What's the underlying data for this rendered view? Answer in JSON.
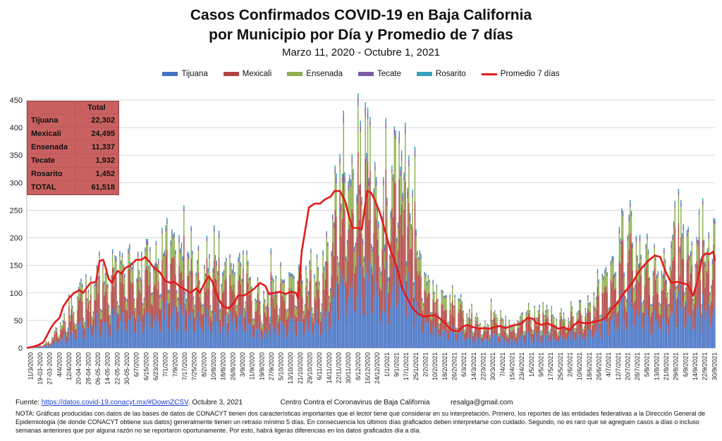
{
  "header": {
    "title_line1": "Casos Confirmados COVID-19 en Baja California",
    "title_line2": "por Municipio por Día y Promedio de 7 días",
    "subtitle": "Marzo 11, 2020  - Octubre 1, 2021"
  },
  "legend": [
    {
      "label": "Tijuana",
      "color": "#4472c4"
    },
    {
      "label": "Mexicali",
      "color": "#b0453f"
    },
    {
      "label": "Ensenada",
      "color": "#8fb050"
    },
    {
      "label": "Tecate",
      "color": "#7a5ca6"
    },
    {
      "label": "Rosarito",
      "color": "#35a0bb"
    },
    {
      "label": "Promedio 7 días",
      "color": "#e21b1b"
    }
  ],
  "totals_table": {
    "header": "Total",
    "rows": [
      {
        "name": "Tijuana",
        "value": "22,302"
      },
      {
        "name": "Mexicali",
        "value": "24,495"
      },
      {
        "name": "Ensenada",
        "value": "11,337"
      },
      {
        "name": "Tecate",
        "value": "1,932"
      },
      {
        "name": "Rosarito",
        "value": "1,452"
      },
      {
        "name": "TOTAL",
        "value": "61,518"
      }
    ]
  },
  "footer": {
    "fuente_label": "Fuente:",
    "fuente_link": "https://datos.covid-19.conacyt.mx/#DownZCSV",
    "fuente_date": ".  Octubre 3, 2021",
    "center": "Centro Contra el Coronavirus de Baja California",
    "email": "resalga@gmail.com",
    "nota": "NOTA: Gráficas producidas con datos de las bases de datos de CONACYT tienen dos características importantes que el lector tiene que considerar en su interpretación.  Primero, los reportes de las entidades federativas a la Dirección General de Epidemiologia (de donde CONACYT obtiene sus datos) generalmente tienen un retraso mínimo 5 días. En consecuencia los últimos días graficados deben interpretarse  con cuidado. Segundo, no es raro que se agreguen casos a días o incluso semanas anteriores  que por alguna razón no se reportaron oportunamente.  Por esto, habrá ligeras diferencias en los datos  graficados día a día."
  },
  "chart_data": {
    "type": "bar",
    "stacked": true,
    "x_range": [
      "2020-03-11",
      "2021-10-01"
    ],
    "ylim": [
      0,
      450
    ],
    "yticks": [
      0,
      50,
      100,
      150,
      200,
      250,
      300,
      350,
      400,
      450
    ],
    "xtick_labels": [
      "11/3/2020",
      "19-03-2020",
      "27-03-2020",
      "4/4/2020",
      "12/4/2020",
      "20-04-2020",
      "28-04-2020",
      "06-05-2020",
      "14-05-2020",
      "22-05-2020",
      "30-05-2020",
      "6/7/2020",
      "6/15/2020",
      "6/23/2020",
      "7/1/2020",
      "7/9/2020",
      "7/17/2020",
      "7/25/2020",
      "8/2/2020",
      "10/8/2020",
      "18/8/2020",
      "26/8/2020",
      "3/9/2020",
      "11/9/2020",
      "19/9/2020",
      "27/9/2020",
      "5/10/2020",
      "13/10/2020",
      "21/10/2020",
      "29/10/2020",
      "6/11/2020",
      "14/11/2020",
      "22/11/2020",
      "30/11/2020",
      "8/12/2020",
      "16/12/2020",
      "24/12/2020",
      "1/1/2021",
      "9/1/2021",
      "17/1/2021",
      "25/1/2021",
      "2/2/2021",
      "10/2/2021",
      "18/2/2021",
      "26/2/2021",
      "6/3/2021",
      "14/3/2021",
      "22/3/2021",
      "30/3/2021",
      "7/4/2021",
      "15/4/2021",
      "23/4/2021",
      "1/5/2021",
      "9/5/2021",
      "17/5/2021",
      "25/5/2021",
      "2/6/2021",
      "10/6/2021",
      "18/6/2021",
      "26/6/2021",
      "4/7/2021",
      "12/7/2021",
      "20/7/2021",
      "28/7/2021",
      "5/8/2021",
      "13/8/2021",
      "21/8/2021",
      "29/8/2021",
      "6/9/2021",
      "14/9/2021",
      "22/9/2021",
      "30/9/2021"
    ],
    "series_names": [
      "Tijuana",
      "Mexicali",
      "Ensenada",
      "Tecate",
      "Rosarito"
    ],
    "daily_total_envelope": [
      [
        0,
        0
      ],
      [
        4,
        1
      ],
      [
        8,
        4
      ],
      [
        12,
        8
      ],
      [
        16,
        12
      ],
      [
        20,
        25
      ],
      [
        24,
        40
      ],
      [
        28,
        55
      ],
      [
        32,
        70
      ],
      [
        36,
        85
      ],
      [
        40,
        100
      ],
      [
        44,
        105
      ],
      [
        48,
        110
      ],
      [
        52,
        120
      ],
      [
        56,
        130
      ],
      [
        60,
        128
      ],
      [
        64,
        140
      ],
      [
        68,
        150
      ],
      [
        72,
        175
      ],
      [
        76,
        160
      ],
      [
        80,
        140
      ],
      [
        84,
        150
      ],
      [
        88,
        160
      ],
      [
        92,
        170
      ],
      [
        96,
        175
      ],
      [
        100,
        180
      ],
      [
        104,
        190
      ],
      [
        108,
        195
      ],
      [
        112,
        190
      ],
      [
        116,
        185
      ],
      [
        120,
        175
      ],
      [
        124,
        160
      ],
      [
        128,
        150
      ],
      [
        132,
        145
      ],
      [
        136,
        140
      ],
      [
        140,
        135
      ],
      [
        144,
        130
      ],
      [
        148,
        125
      ],
      [
        152,
        135
      ],
      [
        156,
        150
      ],
      [
        160,
        140
      ],
      [
        164,
        120
      ],
      [
        168,
        100
      ],
      [
        172,
        95
      ],
      [
        176,
        90
      ],
      [
        180,
        100
      ],
      [
        184,
        110
      ],
      [
        188,
        115
      ],
      [
        192,
        120
      ],
      [
        196,
        125
      ],
      [
        200,
        130
      ],
      [
        204,
        125
      ],
      [
        208,
        130
      ],
      [
        212,
        135
      ],
      [
        216,
        140
      ],
      [
        220,
        145
      ],
      [
        224,
        200
      ],
      [
        228,
        260
      ],
      [
        232,
        310
      ],
      [
        236,
        330
      ],
      [
        240,
        340
      ],
      [
        244,
        345
      ],
      [
        248,
        340
      ],
      [
        252,
        330
      ],
      [
        256,
        325
      ],
      [
        260,
        270
      ],
      [
        264,
        260
      ],
      [
        268,
        270
      ],
      [
        272,
        360
      ],
      [
        276,
        340
      ],
      [
        280,
        300
      ],
      [
        284,
        250
      ],
      [
        288,
        200
      ],
      [
        292,
        160
      ],
      [
        296,
        120
      ],
      [
        300,
        100
      ],
      [
        304,
        90
      ],
      [
        308,
        85
      ],
      [
        312,
        80
      ],
      [
        316,
        75
      ],
      [
        320,
        70
      ],
      [
        324,
        65
      ],
      [
        328,
        60
      ],
      [
        332,
        55
      ],
      [
        336,
        45
      ],
      [
        340,
        45
      ],
      [
        344,
        50
      ],
      [
        348,
        48
      ],
      [
        352,
        50
      ],
      [
        356,
        48
      ],
      [
        360,
        50
      ],
      [
        364,
        52
      ],
      [
        368,
        55
      ],
      [
        372,
        58
      ],
      [
        376,
        60
      ],
      [
        380,
        65
      ],
      [
        384,
        62
      ],
      [
        388,
        58
      ],
      [
        392,
        55
      ],
      [
        396,
        58
      ],
      [
        400,
        60
      ],
      [
        404,
        62
      ],
      [
        408,
        65
      ],
      [
        412,
        68
      ],
      [
        416,
        75
      ],
      [
        420,
        90
      ],
      [
        424,
        110
      ],
      [
        428,
        130
      ],
      [
        432,
        150
      ],
      [
        436,
        160
      ],
      [
        440,
        175
      ],
      [
        444,
        190
      ],
      [
        448,
        200
      ],
      [
        452,
        180
      ],
      [
        456,
        160
      ],
      [
        460,
        150
      ],
      [
        464,
        140
      ],
      [
        468,
        150
      ],
      [
        472,
        160
      ],
      [
        476,
        175
      ],
      [
        480,
        200
      ],
      [
        484,
        210
      ],
      [
        488,
        200
      ],
      [
        492,
        180
      ],
      [
        496,
        175
      ],
      [
        500,
        170
      ],
      [
        504,
        190
      ],
      [
        508,
        200
      ]
    ],
    "spikes": [
      [
        138,
        237
      ],
      [
        142,
        220
      ],
      [
        180,
        210
      ],
      [
        252,
        395
      ],
      [
        258,
        370
      ],
      [
        265,
        360
      ],
      [
        276,
        405
      ],
      [
        279,
        390
      ],
      [
        287,
        380
      ],
      [
        343,
        110
      ],
      [
        440,
        255
      ],
      [
        445,
        250
      ],
      [
        496,
        260
      ],
      [
        499,
        275
      ],
      [
        503,
        200
      ]
    ],
    "share_tijuana": 0.36,
    "share_mexicali": 0.4,
    "share_ensenada": 0.19,
    "share_tecate": 0.03,
    "share_rosarito": 0.02,
    "moving_avg_7d": [
      [
        0,
        0
      ],
      [
        6,
        2
      ],
      [
        12,
        5
      ],
      [
        18,
        10
      ],
      [
        22,
        22
      ],
      [
        26,
        35
      ],
      [
        30,
        45
      ],
      [
        36,
        55
      ],
      [
        40,
        75
      ],
      [
        46,
        90
      ],
      [
        52,
        100
      ],
      [
        58,
        105
      ],
      [
        62,
        100
      ],
      [
        66,
        110
      ],
      [
        70,
        118
      ],
      [
        76,
        120
      ],
      [
        78,
        140
      ],
      [
        80,
        158
      ],
      [
        84,
        160
      ],
      [
        86,
        150
      ],
      [
        90,
        125
      ],
      [
        94,
        118
      ],
      [
        96,
        130
      ],
      [
        100,
        140
      ],
      [
        104,
        135
      ],
      [
        108,
        145
      ],
      [
        114,
        150
      ],
      [
        120,
        160
      ],
      [
        126,
        160
      ],
      [
        130,
        165
      ],
      [
        134,
        158
      ],
      [
        140,
        145
      ],
      [
        146,
        138
      ],
      [
        152,
        122
      ],
      [
        158,
        118
      ],
      [
        162,
        120
      ],
      [
        168,
        112
      ],
      [
        174,
        106
      ],
      [
        180,
        100
      ],
      [
        186,
        108
      ],
      [
        190,
        100
      ],
      [
        196,
        120
      ],
      [
        200,
        130
      ],
      [
        204,
        120
      ],
      [
        208,
        100
      ],
      [
        212,
        85
      ],
      [
        216,
        75
      ],
      [
        222,
        72
      ],
      [
        228,
        82
      ],
      [
        232,
        95
      ],
      [
        238,
        95
      ],
      [
        244,
        100
      ],
      [
        250,
        108
      ],
      [
        256,
        118
      ],
      [
        262,
        113
      ],
      [
        266,
        98
      ],
      [
        272,
        100
      ],
      [
        278,
        102
      ],
      [
        284,
        98
      ],
      [
        290,
        102
      ],
      [
        296,
        100
      ],
      [
        298,
        90
      ],
      [
        302,
        175
      ],
      [
        306,
        215
      ],
      [
        310,
        255
      ],
      [
        316,
        262
      ],
      [
        322,
        262
      ],
      [
        328,
        270
      ],
      [
        334,
        275
      ],
      [
        338,
        285
      ],
      [
        344,
        285
      ],
      [
        350,
        265
      ],
      [
        354,
        238
      ],
      [
        358,
        218
      ],
      [
        364,
        218
      ],
      [
        368,
        215
      ],
      [
        374,
        285
      ],
      [
        378,
        282
      ],
      [
        382,
        270
      ],
      [
        388,
        245
      ],
      [
        392,
        222
      ],
      [
        396,
        198
      ],
      [
        400,
        175
      ],
      [
        404,
        160
      ],
      [
        408,
        138
      ],
      [
        412,
        110
      ],
      [
        418,
        90
      ],
      [
        424,
        72
      ],
      [
        430,
        62
      ],
      [
        436,
        57
      ],
      [
        442,
        58
      ],
      [
        448,
        60
      ],
      [
        452,
        56
      ],
      [
        458,
        48
      ],
      [
        462,
        40
      ],
      [
        468,
        32
      ],
      [
        474,
        30
      ],
      [
        478,
        38
      ],
      [
        484,
        42
      ],
      [
        490,
        38
      ],
      [
        496,
        35
      ],
      [
        502,
        36
      ],
      [
        508,
        35
      ],
      [
        514,
        38
      ],
      [
        520,
        40
      ],
      [
        526,
        36
      ],
      [
        532,
        40
      ],
      [
        538,
        42
      ],
      [
        544,
        45
      ],
      [
        550,
        55
      ],
      [
        556,
        53
      ],
      [
        560,
        45
      ],
      [
        566,
        42
      ],
      [
        572,
        45
      ],
      [
        578,
        40
      ],
      [
        584,
        35
      ],
      [
        590,
        38
      ],
      [
        596,
        32
      ],
      [
        600,
        40
      ],
      [
        606,
        48
      ],
      [
        612,
        45
      ],
      [
        618,
        45
      ],
      [
        624,
        48
      ],
      [
        630,
        50
      ],
      [
        636,
        55
      ],
      [
        642,
        70
      ],
      [
        648,
        80
      ],
      [
        654,
        95
      ],
      [
        660,
        108
      ],
      [
        666,
        120
      ],
      [
        672,
        138
      ],
      [
        678,
        150
      ],
      [
        684,
        160
      ],
      [
        690,
        168
      ],
      [
        696,
        165
      ],
      [
        702,
        138
      ],
      [
        708,
        118
      ],
      [
        714,
        120
      ],
      [
        720,
        118
      ],
      [
        726,
        115
      ],
      [
        732,
        95
      ],
      [
        738,
        130
      ],
      [
        742,
        165
      ],
      [
        746,
        172
      ],
      [
        750,
        170
      ],
      [
        754,
        175
      ],
      [
        756,
        158
      ]
    ]
  }
}
